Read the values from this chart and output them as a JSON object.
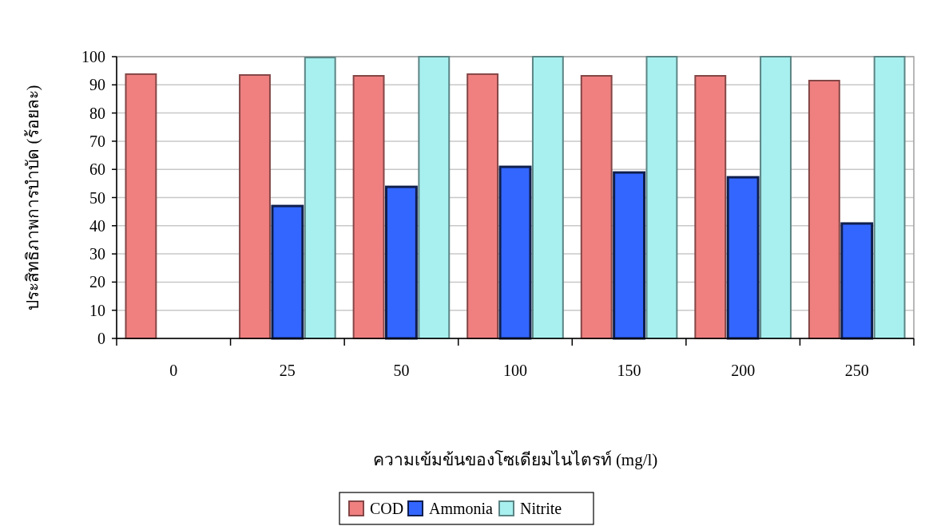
{
  "chart_data": {
    "type": "bar",
    "xlabel": "ความเข้มข้นของโซเดียมไนไตรท์ (mg/l)",
    "ylabel": "ประสิทธิภาพการบำบัด (ร้อยละ)",
    "categories": [
      "0",
      "25",
      "50",
      "100",
      "150",
      "200",
      "250"
    ],
    "series": [
      {
        "name": "COD",
        "color": "#f08080",
        "values": [
          93.8,
          93.5,
          93.2,
          93.8,
          93.2,
          93.2,
          91.5
        ]
      },
      {
        "name": "Ammonia",
        "color": "#3366ff",
        "values": [
          null,
          47.0,
          53.8,
          60.9,
          58.9,
          57.2,
          40.8
        ]
      },
      {
        "name": "Nitrite",
        "color": "#a8f0f0",
        "values": [
          null,
          99.7,
          100,
          100,
          100,
          100,
          100
        ]
      }
    ],
    "ylim": [
      0,
      100
    ],
    "yticks": [
      0,
      10,
      20,
      30,
      40,
      50,
      60,
      70,
      80,
      90,
      100
    ],
    "grid": "y",
    "legend": "bottom"
  }
}
